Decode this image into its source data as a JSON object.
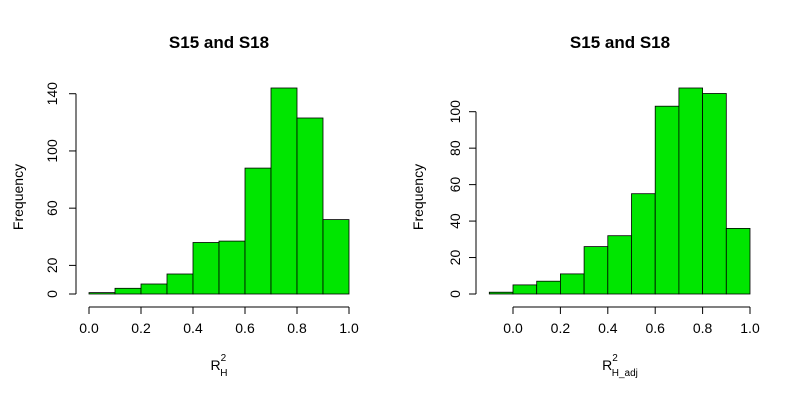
{
  "chart_data": [
    {
      "type": "bar",
      "title": "S15 and S18",
      "xlabel": {
        "main": "R",
        "sup": "2",
        "sub": "H"
      },
      "ylabel": "Frequency",
      "bar_color": "#00e600",
      "bins": [
        {
          "from": 0.0,
          "to": 0.1,
          "count": 1
        },
        {
          "from": 0.1,
          "to": 0.2,
          "count": 4
        },
        {
          "from": 0.2,
          "to": 0.3,
          "count": 7
        },
        {
          "from": 0.3,
          "to": 0.4,
          "count": 14
        },
        {
          "from": 0.4,
          "to": 0.5,
          "count": 36
        },
        {
          "from": 0.5,
          "to": 0.6,
          "count": 37
        },
        {
          "from": 0.6,
          "to": 0.7,
          "count": 88
        },
        {
          "from": 0.7,
          "to": 0.8,
          "count": 144
        },
        {
          "from": 0.8,
          "to": 0.9,
          "count": 123
        },
        {
          "from": 0.9,
          "to": 1.0,
          "count": 52
        }
      ],
      "x_ticks": [
        "0.0",
        "0.2",
        "0.4",
        "0.6",
        "0.8",
        "1.0"
      ],
      "y_ticks": [
        "0",
        "20",
        "60",
        "100",
        "140"
      ],
      "y_tick_values": [
        0,
        20,
        60,
        100,
        140
      ],
      "xlim": [
        0.0,
        1.0
      ],
      "ylim": [
        0,
        144
      ],
      "grid": false
    },
    {
      "type": "bar",
      "title": "S15 and S18",
      "xlabel": {
        "main": "R",
        "sup": "2",
        "sub": "H_adj"
      },
      "ylabel": "Frequency",
      "bar_color": "#00e600",
      "bins": [
        {
          "from": -0.1,
          "to": 0.0,
          "count": 1
        },
        {
          "from": 0.0,
          "to": 0.1,
          "count": 5
        },
        {
          "from": 0.1,
          "to": 0.2,
          "count": 7
        },
        {
          "from": 0.2,
          "to": 0.3,
          "count": 11
        },
        {
          "from": 0.3,
          "to": 0.4,
          "count": 26
        },
        {
          "from": 0.4,
          "to": 0.5,
          "count": 32
        },
        {
          "from": 0.5,
          "to": 0.6,
          "count": 55
        },
        {
          "from": 0.6,
          "to": 0.7,
          "count": 103
        },
        {
          "from": 0.7,
          "to": 0.8,
          "count": 113
        },
        {
          "from": 0.8,
          "to": 0.9,
          "count": 110
        },
        {
          "from": 0.9,
          "to": 1.0,
          "count": 36
        }
      ],
      "x_ticks": [
        "0.0",
        "0.2",
        "0.4",
        "0.6",
        "0.8",
        "1.0"
      ],
      "y_ticks": [
        "0",
        "20",
        "40",
        "60",
        "80",
        "100"
      ],
      "y_tick_values": [
        0,
        20,
        40,
        60,
        80,
        100
      ],
      "xlim": [
        -0.1,
        1.0
      ],
      "ylim": [
        0,
        113
      ],
      "grid": false
    }
  ]
}
